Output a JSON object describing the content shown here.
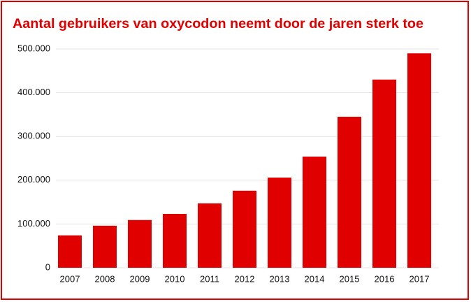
{
  "chart_data": {
    "type": "bar",
    "title": "Aantal gebruikers van oxycodon neemt door de jaren sterk toe",
    "categories": [
      "2007",
      "2008",
      "2009",
      "2010",
      "2011",
      "2012",
      "2013",
      "2014",
      "2015",
      "2016",
      "2017"
    ],
    "values": [
      74000,
      96000,
      109000,
      123000,
      147000,
      176000,
      206000,
      254000,
      345000,
      430000,
      490000
    ],
    "color": "#e00000",
    "ylim": [
      0,
      500000
    ],
    "yticks": [
      0,
      {
        "value": 100000,
        "label": "100.000"
      },
      {
        "value": 200000,
        "label": "200.000"
      },
      {
        "value": 300000,
        "label": "300.000"
      },
      {
        "value": 400000,
        "label": "400.000"
      },
      {
        "value": 500000,
        "label": "500.000"
      }
    ],
    "grid": true
  }
}
